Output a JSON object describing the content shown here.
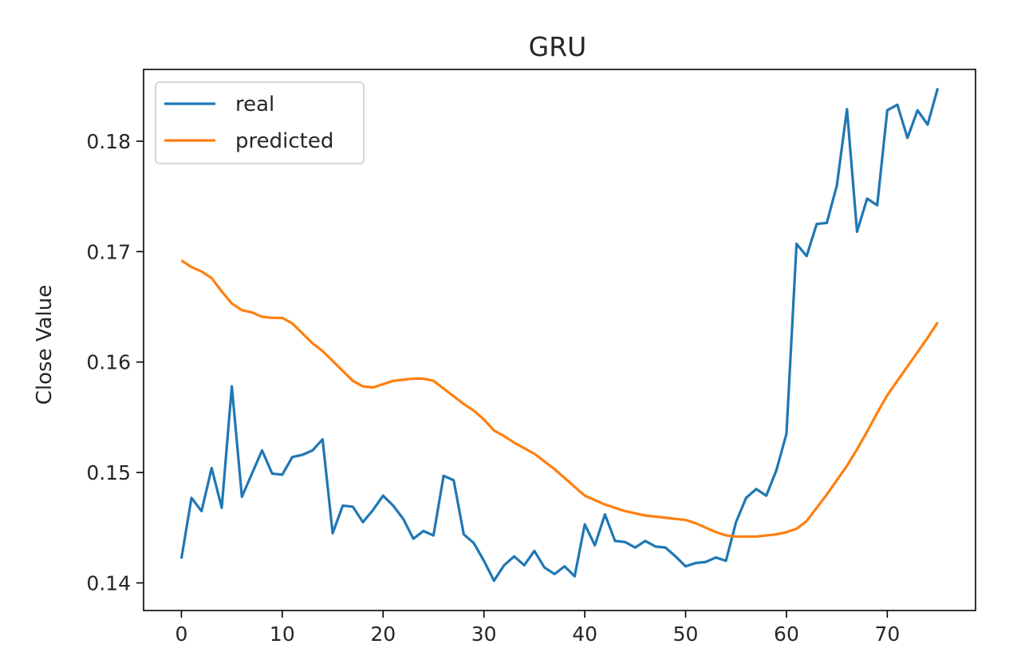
{
  "chart_data": {
    "type": "line",
    "title": "GRU",
    "xlabel": "",
    "ylabel": "Close Value",
    "xlim": [
      -3.75,
      78.75
    ],
    "ylim": [
      0.1375,
      0.1865
    ],
    "xticks": [
      0,
      10,
      20,
      30,
      40,
      50,
      60,
      70
    ],
    "yticks": [
      0.14,
      0.15,
      0.16,
      0.17,
      0.18
    ],
    "xtick_labels": [
      "0",
      "10",
      "20",
      "30",
      "40",
      "50",
      "60",
      "70"
    ],
    "ytick_labels": [
      "0.14",
      "0.15",
      "0.16",
      "0.17",
      "0.18"
    ],
    "grid": false,
    "legend_position": "upper-left",
    "x": [
      0,
      1,
      2,
      3,
      4,
      5,
      6,
      7,
      8,
      9,
      10,
      11,
      12,
      13,
      14,
      15,
      16,
      17,
      18,
      19,
      20,
      21,
      22,
      23,
      24,
      25,
      26,
      27,
      28,
      29,
      30,
      31,
      32,
      33,
      34,
      35,
      36,
      37,
      38,
      39,
      40,
      41,
      42,
      43,
      44,
      45,
      46,
      47,
      48,
      49,
      50,
      51,
      52,
      53,
      54,
      55,
      56,
      57,
      58,
      59,
      60,
      61,
      62,
      63,
      64,
      65,
      66,
      67,
      68,
      69,
      70,
      71,
      72,
      73,
      74,
      75
    ],
    "series": [
      {
        "name": "real",
        "color": "#1f77b4",
        "values": [
          0.1422,
          0.1477,
          0.1465,
          0.1504,
          0.1468,
          0.1578,
          0.1478,
          0.1499,
          0.152,
          0.1499,
          0.1498,
          0.1514,
          0.1516,
          0.152,
          0.153,
          0.1445,
          0.147,
          0.1469,
          0.1455,
          0.1466,
          0.1479,
          0.147,
          0.1458,
          0.144,
          0.1447,
          0.1443,
          0.1497,
          0.1493,
          0.1444,
          0.1436,
          0.142,
          0.1402,
          0.1416,
          0.1424,
          0.1416,
          0.1429,
          0.1414,
          0.1408,
          0.1415,
          0.1406,
          0.1453,
          0.1434,
          0.1462,
          0.1438,
          0.1437,
          0.1432,
          0.1438,
          0.1433,
          0.1432,
          0.1424,
          0.1415,
          0.1418,
          0.1419,
          0.1423,
          0.142,
          0.1455,
          0.1477,
          0.1485,
          0.1479,
          0.1502,
          0.1535,
          0.1707,
          0.1696,
          0.1725,
          0.1726,
          0.176,
          0.1829,
          0.1718,
          0.1748,
          0.1742,
          0.1828,
          0.1833,
          0.1803,
          0.1828,
          0.1815,
          0.1848
        ]
      },
      {
        "name": "predicted",
        "color": "#ff7f0e",
        "values": [
          0.1692,
          0.1686,
          0.1682,
          0.1676,
          0.1664,
          0.1653,
          0.1647,
          0.1645,
          0.1641,
          0.164,
          0.164,
          0.1635,
          0.1626,
          0.1617,
          0.161,
          0.1601,
          0.1592,
          0.1583,
          0.1578,
          0.1577,
          0.158,
          0.1583,
          0.1584,
          0.1585,
          0.1585,
          0.1583,
          0.1576,
          0.1569,
          0.1562,
          0.1556,
          0.1548,
          0.1538,
          0.1533,
          0.1527,
          0.1522,
          0.1517,
          0.151,
          0.1503,
          0.1495,
          0.1487,
          0.1479,
          0.1475,
          0.1471,
          0.1468,
          0.1465,
          0.1463,
          0.1461,
          0.146,
          0.1459,
          0.1458,
          0.1457,
          0.1454,
          0.145,
          0.1446,
          0.1443,
          0.1442,
          0.1442,
          0.1442,
          0.1443,
          0.1444,
          0.1446,
          0.1449,
          0.1456,
          0.1468,
          0.148,
          0.1493,
          0.1506,
          0.1521,
          0.1537,
          0.1554,
          0.157,
          0.1583,
          0.1596,
          0.1609,
          0.1622,
          0.1636
        ]
      }
    ]
  }
}
